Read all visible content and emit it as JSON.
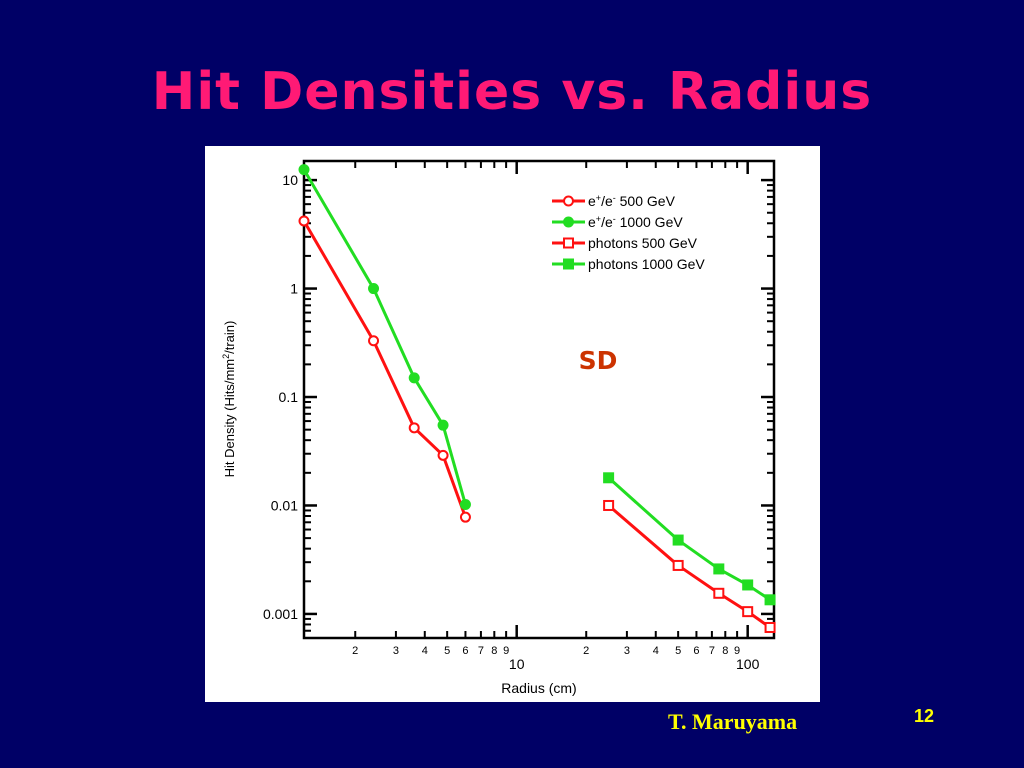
{
  "slide": {
    "title": "Hit Densities vs. Radius",
    "author": "T. Maruyama",
    "page_number": "12"
  },
  "chart_data": {
    "type": "line",
    "xlabel": "Radius (cm)",
    "ylabel_parts": [
      "Hit Density (Hits/mm",
      "2",
      "/train)"
    ],
    "xscale": "log",
    "yscale": "log",
    "xlim": [
      1.2,
      130
    ],
    "ylim": [
      0.0006,
      15
    ],
    "x_major_ticks": [
      {
        "value": 10,
        "label": "10"
      },
      {
        "value": 100,
        "label": "100"
      }
    ],
    "x_minor_ticks": [
      {
        "value": 2,
        "label": "2"
      },
      {
        "value": 3,
        "label": "3"
      },
      {
        "value": 4,
        "label": "4"
      },
      {
        "value": 5,
        "label": "5"
      },
      {
        "value": 6,
        "label": "6"
      },
      {
        "value": 7,
        "label": "7"
      },
      {
        "value": 8,
        "label": "8"
      },
      {
        "value": 9,
        "label": "9"
      },
      {
        "value": 20,
        "label": "2"
      },
      {
        "value": 30,
        "label": "3"
      },
      {
        "value": 40,
        "label": "4"
      },
      {
        "value": 50,
        "label": "5"
      },
      {
        "value": 60,
        "label": "6"
      },
      {
        "value": 70,
        "label": "7"
      },
      {
        "value": 80,
        "label": "8"
      },
      {
        "value": 90,
        "label": "9"
      }
    ],
    "y_major_ticks": [
      {
        "value": 10,
        "label": "10"
      },
      {
        "value": 1,
        "label": "1"
      },
      {
        "value": 0.1,
        "label": "0.1"
      },
      {
        "value": 0.01,
        "label": "0.01"
      },
      {
        "value": 0.001,
        "label": "0.001"
      }
    ],
    "annotation": "SD",
    "annotation_color": "#cc3300",
    "legend_position": "top-right",
    "legend": [
      {
        "label_parts": [
          "e",
          "+",
          "/e",
          "-",
          "      500 GeV"
        ],
        "color": "#ff1111",
        "marker": "circle-open"
      },
      {
        "label_parts": [
          "e",
          "+",
          "/e",
          "-",
          "    1000 GeV"
        ],
        "color": "#22dd22",
        "marker": "circle-filled"
      },
      {
        "label_parts": [
          "photons  500 GeV"
        ],
        "color": "#ff1111",
        "marker": "square-open"
      },
      {
        "label_parts": [
          "photons 1000 GeV"
        ],
        "color": "#22dd22",
        "marker": "square-filled"
      }
    ],
    "series": [
      {
        "color": "#ff1111",
        "marker": "circle-open",
        "points": [
          [
            1.2,
            4.2
          ],
          [
            2.4,
            0.33
          ],
          [
            3.6,
            0.052
          ],
          [
            4.8,
            0.029
          ],
          [
            6.0,
            0.0078
          ]
        ]
      },
      {
        "color": "#22dd22",
        "marker": "circle-filled",
        "points": [
          [
            1.2,
            12.5
          ],
          [
            2.4,
            1.0
          ],
          [
            3.6,
            0.15
          ],
          [
            4.8,
            0.055
          ],
          [
            6.0,
            0.0102
          ]
        ]
      },
      {
        "color": "#ff1111",
        "marker": "square-open",
        "points": [
          [
            25,
            0.01
          ],
          [
            50,
            0.0028
          ],
          [
            75,
            0.00155
          ],
          [
            100,
            0.00105
          ],
          [
            125,
            0.00075
          ]
        ]
      },
      {
        "color": "#22dd22",
        "marker": "square-filled",
        "points": [
          [
            25,
            0.018
          ],
          [
            50,
            0.0048
          ],
          [
            75,
            0.0026
          ],
          [
            100,
            0.00185
          ],
          [
            125,
            0.00135
          ]
        ]
      }
    ]
  }
}
